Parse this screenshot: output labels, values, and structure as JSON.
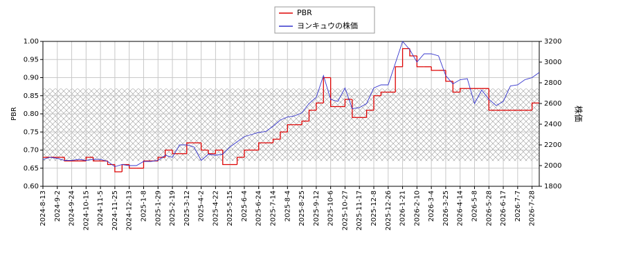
{
  "chart_data": {
    "type": "line",
    "categories": [
      "2024-8-13",
      null,
      "2024-9-2",
      null,
      "2024-9-24",
      null,
      "2024-10-15",
      null,
      "2024-11-5",
      null,
      "2024-11-25",
      null,
      "2024-12-13",
      null,
      "2025-1-8",
      null,
      "2025-1-29",
      null,
      "2025-2-19",
      null,
      "2025-3-12",
      null,
      "2025-4-2",
      null,
      "2025-4-22",
      null,
      "2025-5-15",
      null,
      "2025-6-4",
      null,
      "2025-6-24",
      null,
      "2025-7-14",
      null,
      "2025-8-4",
      null,
      "2025-8-25",
      null,
      "2025-9-12",
      null,
      "2025-10-6",
      null,
      "2025-10-27",
      null,
      "2025-11-17",
      null,
      "2025-12-8",
      null,
      "2025-12-26",
      null,
      "2026-1-21",
      null,
      "2026-2-10",
      null,
      "2026-3-4",
      null,
      "2026-3-25",
      null,
      "2026-4-14",
      null,
      "2026-5-8",
      null,
      "2026-5-28",
      null,
      "2026-6-17",
      null,
      "2026-7-7",
      null,
      "2026-7-28",
      null
    ],
    "series": [
      {
        "name": "PBR",
        "color": "#dd0000",
        "step": true,
        "values": [
          0.68,
          0.68,
          0.68,
          0.67,
          0.67,
          0.67,
          0.68,
          0.67,
          0.67,
          0.66,
          0.64,
          0.66,
          0.65,
          0.65,
          0.67,
          0.67,
          0.68,
          0.7,
          0.69,
          0.69,
          0.72,
          0.72,
          0.7,
          0.69,
          0.7,
          0.66,
          0.66,
          0.68,
          0.7,
          0.7,
          0.72,
          0.72,
          0.73,
          0.75,
          0.77,
          0.77,
          0.78,
          0.81,
          0.83,
          0.9,
          0.82,
          0.82,
          0.84,
          0.79,
          0.79,
          0.81,
          0.85,
          0.86,
          0.86,
          0.93,
          0.98,
          0.96,
          0.93,
          0.93,
          0.92,
          0.92,
          0.89,
          0.86,
          0.87,
          0.87,
          0.87,
          0.87,
          0.81,
          0.81,
          0.81,
          0.81,
          0.81,
          0.81,
          0.83,
          0.83
        ]
      },
      {
        "name": "ヨンキュウの株価",
        "color": "#3333cc",
        "axis": "y2",
        "values": [
          2060,
          2080,
          2070,
          2050,
          2050,
          2060,
          2050,
          2060,
          2060,
          2040,
          1990,
          2010,
          2000,
          2000,
          2040,
          2040,
          2050,
          2100,
          2080,
          2200,
          2200,
          2180,
          2050,
          2110,
          2100,
          2110,
          2180,
          2230,
          2280,
          2300,
          2320,
          2330,
          2380,
          2440,
          2470,
          2480,
          2510,
          2600,
          2660,
          2870,
          2640,
          2620,
          2750,
          2550,
          2560,
          2600,
          2750,
          2780,
          2780,
          2990,
          3200,
          3120,
          3000,
          3080,
          3080,
          3060,
          2870,
          2790,
          2830,
          2840,
          2600,
          2730,
          2640,
          2580,
          2620,
          2770,
          2780,
          2830,
          2850,
          2900
        ]
      }
    ],
    "y_label": "PBR",
    "y2_label": "株価",
    "ylim": [
      0.6,
      1.0
    ],
    "yticks": [
      {
        "value": 0.6,
        "label": "0.60"
      },
      0.65,
      {
        "value": 0.7,
        "label": "0.70"
      },
      0.75,
      {
        "value": 0.8,
        "label": "0.80"
      },
      0.85,
      {
        "value": 0.9,
        "label": "0.90"
      },
      0.95,
      {
        "value": 1.0,
        "label": "1.00"
      }
    ],
    "y2lim": [
      1800,
      3200
    ],
    "y2ticks": [
      1800,
      2000,
      2200,
      2400,
      2600,
      2800,
      3000,
      3200
    ],
    "band": [
      0.67,
      0.87
    ],
    "grid": true,
    "legend": "top"
  }
}
